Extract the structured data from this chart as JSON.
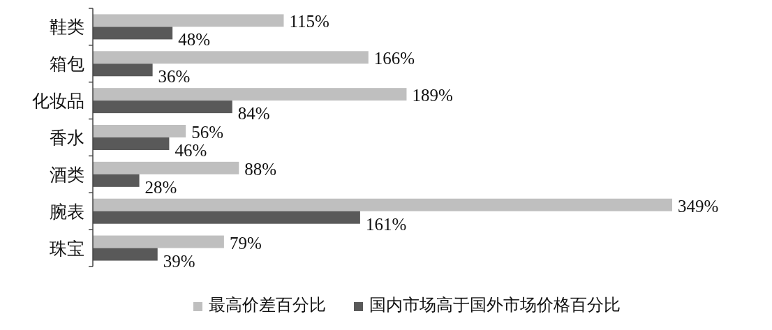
{
  "chart_data": {
    "type": "bar",
    "orientation": "horizontal",
    "categories": [
      "鞋类",
      "箱包",
      "化妆品",
      "香水",
      "酒类",
      "腕表",
      "珠宝"
    ],
    "legend": "bottom",
    "series": [
      {
        "name": "最高价差百分比",
        "color": "#bfbfbf",
        "values": [
          115,
          166,
          189,
          56,
          88,
          349,
          79
        ],
        "value_labels": [
          "115%",
          "166%",
          "189%",
          "56%",
          "88%",
          "349%",
          "79%"
        ]
      },
      {
        "name": "国内市场高于国外市场价格百分比",
        "color": "#595959",
        "values": [
          48,
          36,
          84,
          46,
          28,
          161,
          39
        ],
        "value_labels": [
          "48%",
          "36%",
          "84%",
          "46%",
          "28%",
          "161%",
          "39%"
        ]
      }
    ]
  }
}
